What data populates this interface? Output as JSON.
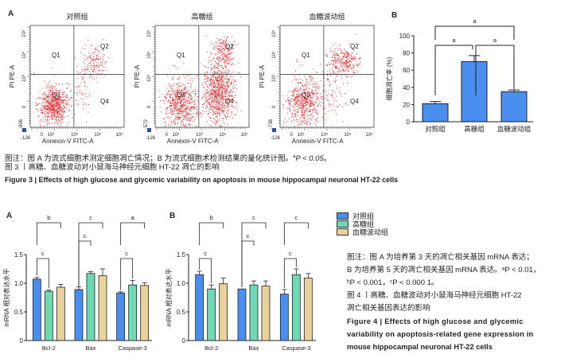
{
  "figure3": {
    "panel_a_label": "A",
    "panel_b_label": "B",
    "flow_plots": [
      {
        "title": "对照组",
        "y_label": "PI PE-A",
        "x_label": "Annexin-V FITC-A",
        "y_min_label": "-906",
        "x_min_label": "-126",
        "quadrants": [
          "Q1",
          "Q2",
          "Q3",
          "Q4"
        ],
        "cluster": "control"
      },
      {
        "title": "高糖组",
        "y_label": "PI PE-A",
        "x_label": "Annexin-V FITC-A",
        "y_min_label": "-572",
        "x_min_label": "-126",
        "quadrants": [
          "Q1",
          "Q2",
          "Q3",
          "Q4"
        ],
        "cluster": "high"
      },
      {
        "title": "血糖波动组",
        "y_label": "PI PE-A",
        "x_label": "Annexin-V FITC-A",
        "y_min_label": "-738",
        "x_min_label": "-126",
        "quadrants": [
          "Q1",
          "Q2",
          "Q3",
          "Q4"
        ],
        "cluster": "fluct"
      }
    ],
    "flow_x_ticks": [
      "0",
      "10²",
      "10³",
      "10⁴",
      "10⁵"
    ],
    "flow_y_ticks": [
      "0",
      "10³",
      "10⁴",
      "10⁵"
    ],
    "caption_note": "图注：图 A 为流式细胞术测定细胞凋亡情况；B 为流式细胞术检测结果的量化统计图。",
    "caption_note_p": "P < 0.05。",
    "caption_note_sup": "a",
    "caption_cn": "图 3 丨高糖、血糖波动对小鼠海马神经元细胞 HT-22 凋亡的影响",
    "caption_en": "Figure 3  |  Effects of high glucose and glycemic variability on apoptosis in mouse hippocampal neuronal HT-22 cells"
  },
  "figure4": {
    "panel_a_label": "A",
    "panel_b_label": "B",
    "legend": [
      {
        "label": "对照组",
        "color": "#4a8ff0"
      },
      {
        "label": "高糖组",
        "color": "#6fd9b6"
      },
      {
        "label": "血糖波动组",
        "color": "#ead39a"
      }
    ],
    "note_lines": [
      "图注：图 A 为培养第 3 天的凋亡相关基因 mRNA 表达；",
      "B 为培养第 5 天的凋亡相关基因 mRNA 表达。ᵃP < 0.01，",
      "ᵇP < 0.001，ᶜP < 0.000 1。"
    ],
    "caption_cn_lines": [
      "图 4 丨高糖、血糖波动对小鼠海马神经元细胞 HT-22",
      "凋亡相关基因表达的影响"
    ],
    "caption_en_lines": [
      "Figure 4  |  Effects of high glucose and glycemic",
      "variability on apoptosis-related gene expression in",
      "mouse hippocampal neuronal HT-22 cells"
    ]
  },
  "chart_data": [
    {
      "id": "fig3B",
      "type": "bar",
      "title": "",
      "categories": [
        "对照组",
        "高糖组",
        "血糖波动组"
      ],
      "values": [
        21,
        70,
        35
      ],
      "errors": [
        2.5,
        7,
        2
      ],
      "xlabel": "",
      "ylabel": "细胞凋亡率 (%)",
      "ylim": [
        0,
        100
      ],
      "yticks": [
        0,
        20,
        40,
        60,
        80,
        100
      ],
      "bar_color": "#4a8ff0",
      "significance": [
        {
          "from": 0,
          "to": 1,
          "label": "a",
          "level": 1
        },
        {
          "from": 1,
          "to": 2,
          "label": "a",
          "level": 1
        },
        {
          "from": 0,
          "to": 2,
          "label": "a",
          "level": 2
        }
      ]
    },
    {
      "id": "fig4A",
      "type": "bar",
      "title": "",
      "categories": [
        "Bcl-2",
        "Bax",
        "Caspase-3"
      ],
      "series": [
        {
          "name": "对照组",
          "color": "#4a8ff0",
          "values": [
            1.07,
            0.89,
            0.83
          ],
          "errors": [
            0.03,
            0.05,
            0.02
          ]
        },
        {
          "name": "高糖组",
          "color": "#6fd9b6",
          "values": [
            0.86,
            1.17,
            0.97
          ],
          "errors": [
            0.02,
            0.03,
            0.08
          ]
        },
        {
          "name": "血糖波动组",
          "color": "#ead39a",
          "values": [
            0.93,
            1.13,
            0.96
          ],
          "errors": [
            0.05,
            0.12,
            0.05
          ]
        }
      ],
      "xlabel": "",
      "ylabel": "mRNA 相对表达水平",
      "ylim": [
        0,
        1.5
      ],
      "yticks": [
        "0",
        "0.5",
        "1.0",
        "1.5"
      ],
      "significance": [
        {
          "cat": 0,
          "from": 0,
          "to": 1,
          "label": "c",
          "level": 1
        },
        {
          "cat": 0,
          "from": 0,
          "to": 2,
          "label": "b",
          "level": 2
        },
        {
          "cat": 1,
          "from": 0,
          "to": 1,
          "label": "c",
          "level": 1
        },
        {
          "cat": 1,
          "from": 0,
          "to": 2,
          "label": "c",
          "level": 2
        },
        {
          "cat": 2,
          "from": 0,
          "to": 1,
          "label": "c",
          "level": 1
        },
        {
          "cat": 2,
          "from": 0,
          "to": 2,
          "label": "a",
          "level": 2
        }
      ]
    },
    {
      "id": "fig4B",
      "type": "bar",
      "title": "",
      "categories": [
        "Bcl-2",
        "Bax",
        "Caspase-3"
      ],
      "series": [
        {
          "name": "对照组",
          "color": "#4a8ff0",
          "values": [
            1.15,
            0.9,
            0.81
          ],
          "errors": [
            0.06,
            0.0,
            0.08
          ]
        },
        {
          "name": "高糖组",
          "color": "#6fd9b6",
          "values": [
            0.9,
            0.97,
            1.15
          ],
          "errors": [
            0.07,
            0.07,
            0.1
          ]
        },
        {
          "name": "血糖波动组",
          "color": "#ead39a",
          "values": [
            0.99,
            0.95,
            1.09
          ],
          "errors": [
            0.1,
            0.09,
            0.08
          ]
        }
      ],
      "xlabel": "",
      "ylabel": "mRNA 相对表达水平",
      "ylim": [
        0,
        1.5
      ],
      "yticks": [
        "0",
        "0.5",
        "1.0",
        "1.5"
      ],
      "significance": [
        {
          "cat": 0,
          "from": 0,
          "to": 1,
          "label": "c",
          "level": 1
        },
        {
          "cat": 0,
          "from": 0,
          "to": 2,
          "label": "b",
          "level": 2
        },
        {
          "cat": 1,
          "from": 0,
          "to": 1,
          "label": "c",
          "level": 1
        },
        {
          "cat": 1,
          "from": 0,
          "to": 2,
          "label": "c",
          "level": 2
        },
        {
          "cat": 2,
          "from": 0,
          "to": 1,
          "label": "c",
          "level": 1
        },
        {
          "cat": 2,
          "from": 0,
          "to": 2,
          "label": "c",
          "level": 2
        }
      ]
    }
  ]
}
